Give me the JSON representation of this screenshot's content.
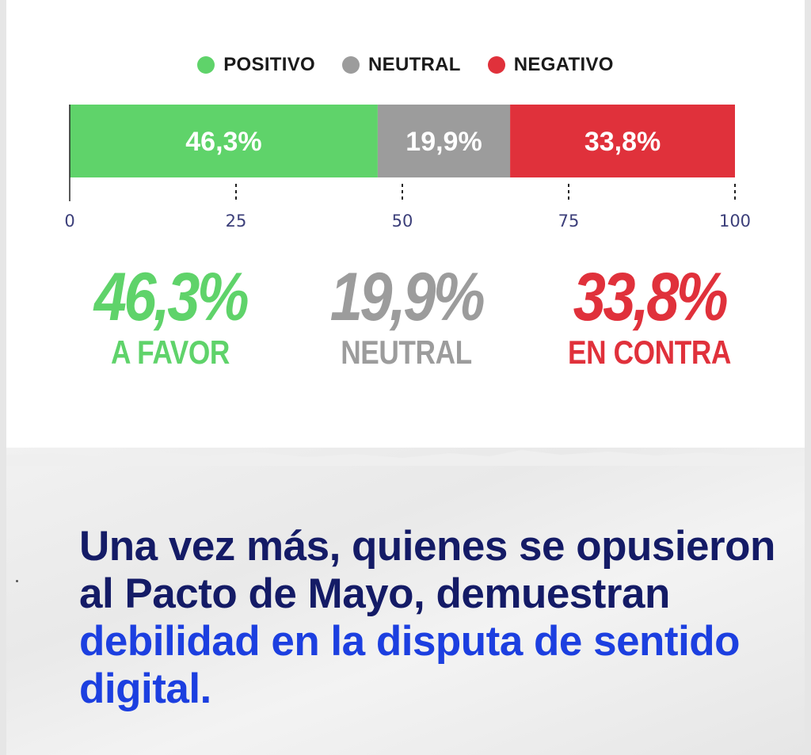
{
  "legend": [
    {
      "label": "POSITIVO",
      "color": "#5fd36a"
    },
    {
      "label": "NEUTRAL",
      "color": "#9c9c9c"
    },
    {
      "label": "NEGATIVO",
      "color": "#e0313b"
    }
  ],
  "chart_data": {
    "type": "bar",
    "orientation": "horizontal-stacked",
    "series": [
      {
        "name": "POSITIVO",
        "value": 46.3,
        "label": "46,3%",
        "color": "#5fd36a"
      },
      {
        "name": "NEUTRAL",
        "value": 19.9,
        "label": "19,9%",
        "color": "#9c9c9c"
      },
      {
        "name": "NEGATIVO",
        "value": 33.8,
        "label": "33,8%",
        "color": "#e0313b"
      }
    ],
    "xlim": [
      0,
      100
    ],
    "ticks": [
      0,
      25,
      50,
      75,
      100
    ],
    "tick_labels": [
      "0",
      "25",
      "50",
      "75",
      "100"
    ],
    "legend_position": "top-center"
  },
  "stats": {
    "positive": {
      "value": "46,3%",
      "caption": "A FAVOR",
      "color": "#5fd36a"
    },
    "neutral": {
      "value": "19,9%",
      "caption": "NEUTRAL",
      "color": "#9c9c9c"
    },
    "negative": {
      "value": "33,8%",
      "caption": "EN CONTRA",
      "color": "#e0313b"
    }
  },
  "headline": {
    "part1": "Una vez más, quienes se opusieron al Pacto de Mayo, demuestran ",
    "highlight": "debilidad en la disputa de sentido digital."
  },
  "colors": {
    "headline": "#141b66",
    "highlight": "#1c3fe0",
    "axis": "#3c3f7a"
  }
}
